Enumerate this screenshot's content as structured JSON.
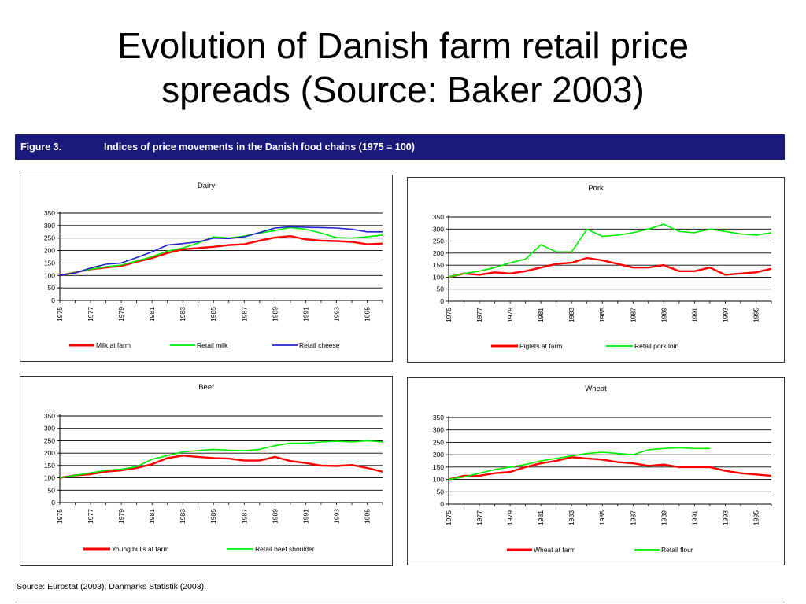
{
  "slide": {
    "title_line1": "Evolution of Danish farm retail price",
    "title_line2": "spreads (Source: Baker 2003)"
  },
  "figure": {
    "number": "Figure 3.",
    "caption": "Indices of price movements in the Danish food chains (1975 = 100)"
  },
  "source": "Source: Eurostat (2003); Danmarks Statistik (2003).",
  "chart_data": [
    {
      "type": "line",
      "title": "Dairy",
      "x": [
        1975,
        1976,
        1977,
        1978,
        1979,
        1980,
        1981,
        1982,
        1983,
        1984,
        1985,
        1986,
        1987,
        1988,
        1989,
        1990,
        1991,
        1992,
        1993,
        1994,
        1995,
        1996
      ],
      "xticks": [
        "1975",
        "1977",
        "1979",
        "1981",
        "1983",
        "1985",
        "1987",
        "1989",
        "1991",
        "1993",
        "1995"
      ],
      "yticks": [
        "0",
        "50",
        "100",
        "150",
        "200",
        "250",
        "300",
        "350"
      ],
      "ylim": [
        0,
        350
      ],
      "grid": true,
      "legend_position": "bottom",
      "series": [
        {
          "name": "Milk at farm",
          "color": "#ff0000",
          "values": [
            100,
            112,
            125,
            132,
            138,
            155,
            170,
            190,
            205,
            210,
            215,
            222,
            225,
            240,
            252,
            258,
            245,
            240,
            238,
            235,
            225,
            228
          ]
        },
        {
          "name": "Retail milk",
          "color": "#00ee00",
          "values": [
            100,
            112,
            125,
            135,
            142,
            158,
            175,
            198,
            210,
            230,
            255,
            250,
            258,
            270,
            280,
            292,
            285,
            270,
            252,
            250,
            255,
            262
          ]
        },
        {
          "name": "Retail cheese",
          "color": "#2222cc",
          "values": [
            100,
            110,
            130,
            145,
            150,
            172,
            195,
            222,
            228,
            235,
            250,
            248,
            255,
            272,
            290,
            295,
            293,
            292,
            290,
            285,
            275,
            275
          ]
        }
      ]
    },
    {
      "type": "line",
      "title": "Pork",
      "x": [
        1975,
        1976,
        1977,
        1978,
        1979,
        1980,
        1981,
        1982,
        1983,
        1984,
        1985,
        1986,
        1987,
        1988,
        1989,
        1990,
        1991,
        1992,
        1993,
        1994,
        1995,
        1996
      ],
      "xticks": [
        "1975",
        "1977",
        "1979",
        "1981",
        "1983",
        "1985",
        "1987",
        "1989",
        "1991",
        "1993",
        "1995"
      ],
      "yticks": [
        "0",
        "50",
        "100",
        "150",
        "200",
        "250",
        "300",
        "350"
      ],
      "ylim": [
        0,
        350
      ],
      "grid": true,
      "legend_position": "bottom",
      "series": [
        {
          "name": "Piglets at farm",
          "color": "#ff0000",
          "values": [
            100,
            115,
            110,
            120,
            115,
            125,
            140,
            155,
            160,
            180,
            170,
            155,
            140,
            140,
            150,
            125,
            125,
            140,
            110,
            115,
            120,
            135
          ]
        },
        {
          "name": "Retail pork loin",
          "color": "#00ee00",
          "values": [
            100,
            115,
            125,
            140,
            160,
            175,
            235,
            205,
            205,
            300,
            270,
            275,
            285,
            300,
            320,
            290,
            285,
            300,
            290,
            280,
            275,
            285
          ]
        }
      ]
    },
    {
      "type": "line",
      "title": "Beef",
      "x": [
        1975,
        1976,
        1977,
        1978,
        1979,
        1980,
        1981,
        1982,
        1983,
        1984,
        1985,
        1986,
        1987,
        1988,
        1989,
        1990,
        1991,
        1992,
        1993,
        1994,
        1995,
        1996
      ],
      "xticks": [
        "1975",
        "1977",
        "1979",
        "1981",
        "1983",
        "1985",
        "1987",
        "1989",
        "1991",
        "1993",
        "1995"
      ],
      "yticks": [
        "0",
        "50",
        "100",
        "150",
        "200",
        "250",
        "300",
        "350"
      ],
      "ylim": [
        0,
        350
      ],
      "grid": true,
      "legend_position": "bottom",
      "series": [
        {
          "name": "Young bulls at farm",
          "color": "#ff0000",
          "values": [
            100,
            110,
            115,
            125,
            130,
            140,
            155,
            180,
            190,
            185,
            180,
            178,
            170,
            170,
            185,
            168,
            160,
            150,
            148,
            152,
            140,
            125
          ]
        },
        {
          "name": "Retail beef shoulder",
          "color": "#00ee00",
          "values": [
            100,
            110,
            120,
            130,
            135,
            145,
            175,
            190,
            205,
            210,
            215,
            212,
            210,
            215,
            230,
            240,
            240,
            245,
            248,
            245,
            250,
            245
          ]
        }
      ]
    },
    {
      "type": "line",
      "title": "Wheat",
      "x": [
        1975,
        1976,
        1977,
        1978,
        1979,
        1980,
        1981,
        1982,
        1983,
        1984,
        1985,
        1986,
        1987,
        1988,
        1989,
        1990,
        1991,
        1992,
        1993,
        1994,
        1995,
        1996
      ],
      "xticks": [
        "1975",
        "1977",
        "1979",
        "1981",
        "1983",
        "1985",
        "1987",
        "1989",
        "1991",
        "1993",
        "1995"
      ],
      "yticks": [
        "0",
        "50",
        "100",
        "150",
        "200",
        "250",
        "300",
        "350"
      ],
      "ylim": [
        0,
        350
      ],
      "grid": true,
      "legend_position": "bottom",
      "series": [
        {
          "name": "Wheat at farm",
          "color": "#ff0000",
          "values": [
            100,
            115,
            115,
            125,
            130,
            150,
            165,
            175,
            190,
            185,
            180,
            170,
            165,
            155,
            160,
            150,
            150,
            150,
            135,
            125,
            120,
            115
          ]
        },
        {
          "name": "Retail flour",
          "color": "#00ee00",
          "values": [
            100,
            110,
            125,
            140,
            150,
            160,
            175,
            185,
            195,
            205,
            210,
            205,
            200,
            220,
            225,
            228,
            225,
            225,
            null,
            null,
            null,
            null
          ]
        }
      ]
    }
  ]
}
